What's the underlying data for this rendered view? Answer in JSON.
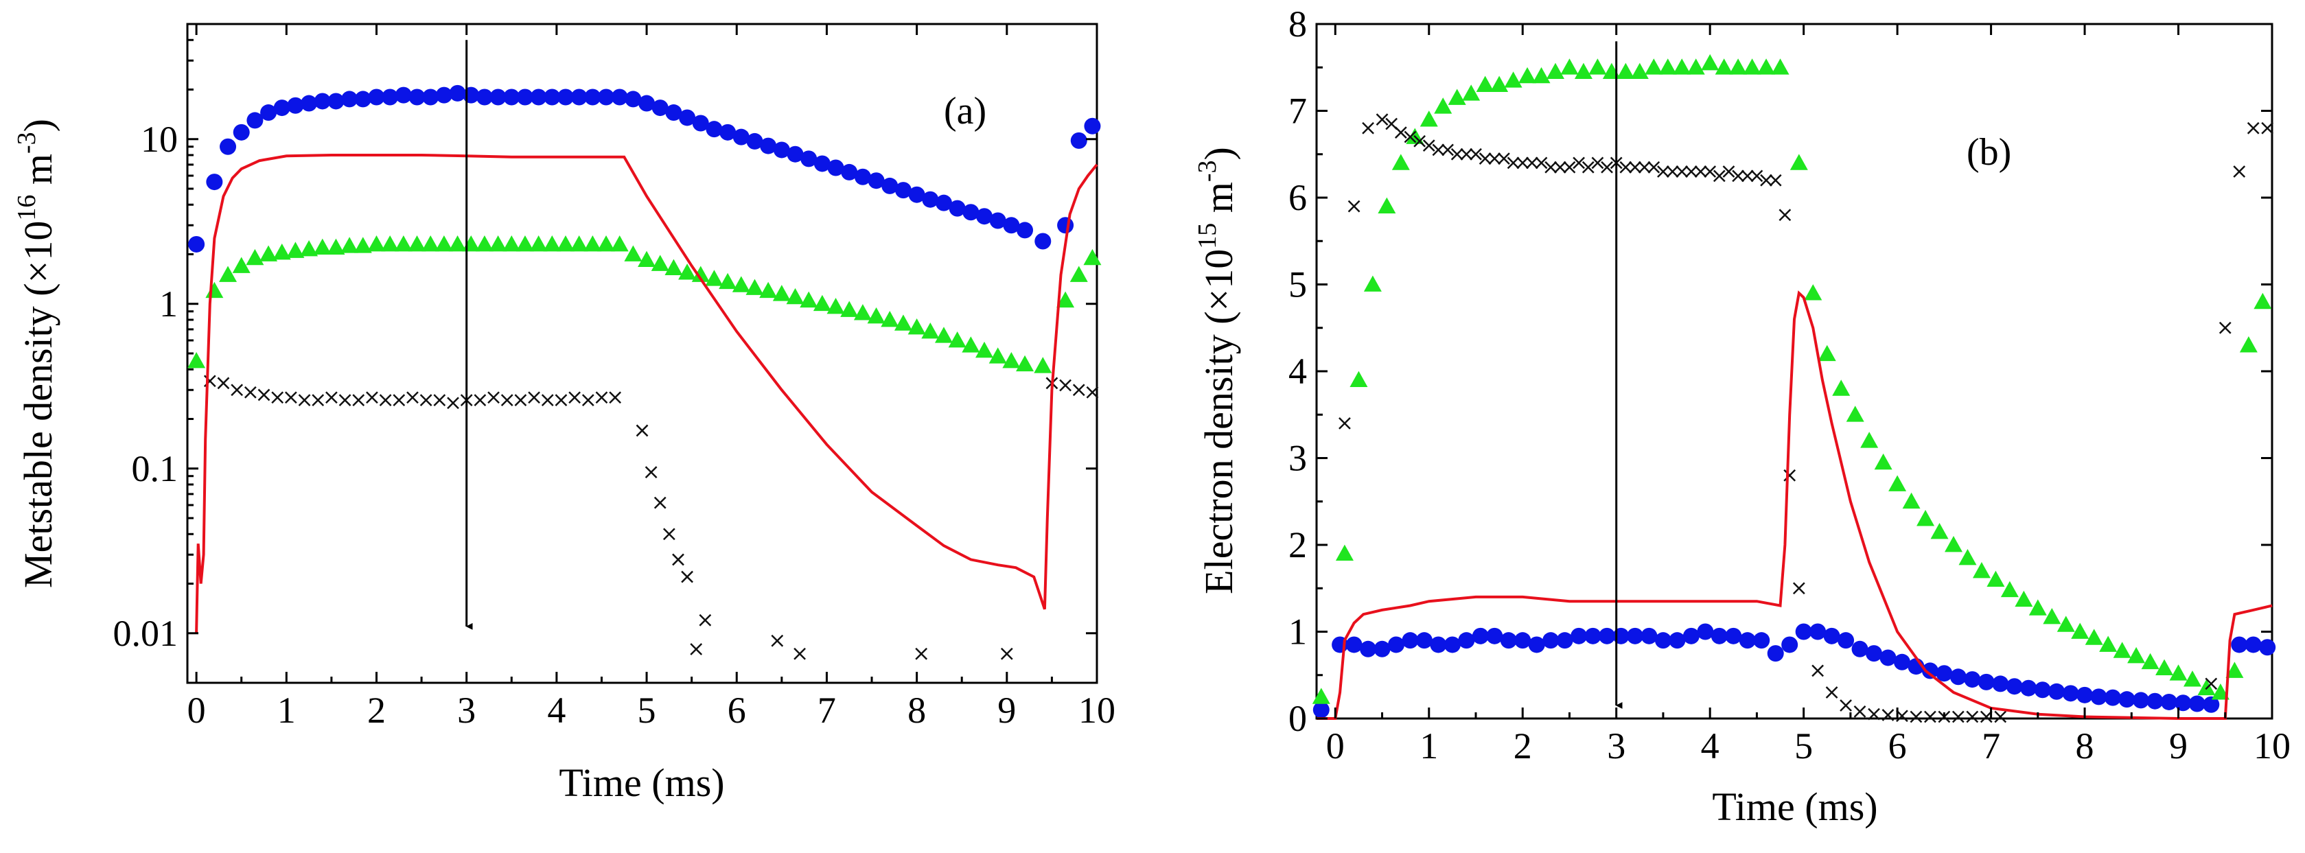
{
  "chart_data": [
    {
      "type": "scatter",
      "panel_label": "(a)",
      "title": "",
      "xlabel": "Time (ms)",
      "ylabel": "Metstable density (×10",
      "ylabel_exp": "16",
      "ylabel_unit": " m",
      "ylabel_unit_exp": "-3",
      "ylabel_close": ")",
      "yscale": "log",
      "xlim": [
        -0.1,
        10
      ],
      "ylim": [
        0.005,
        50
      ],
      "xticks": [
        0,
        1,
        2,
        3,
        4,
        5,
        6,
        7,
        8,
        9,
        10
      ],
      "xtick_labels": [
        "0",
        "1",
        "2",
        "3",
        "4",
        "5",
        "6",
        "7",
        "8",
        "9",
        "10"
      ],
      "yticks": [
        0.01,
        0.1,
        1,
        10
      ],
      "ytick_labels": [
        "0.01",
        "0.1",
        "1",
        "10"
      ],
      "arrow": {
        "x": 3,
        "y_from": 40,
        "y_to": 0.011
      },
      "series": [
        {
          "name": "blue-circles",
          "marker": "circle",
          "color": "#0a14e6",
          "x": [
            0.0,
            0.2,
            0.35,
            0.5,
            0.65,
            0.8,
            0.95,
            1.1,
            1.25,
            1.4,
            1.55,
            1.7,
            1.85,
            2.0,
            2.15,
            2.3,
            2.45,
            2.6,
            2.75,
            2.9,
            3.05,
            3.2,
            3.35,
            3.5,
            3.65,
            3.8,
            3.95,
            4.1,
            4.25,
            4.4,
            4.55,
            4.7,
            4.85,
            5.0,
            5.15,
            5.3,
            5.45,
            5.6,
            5.75,
            5.9,
            6.05,
            6.2,
            6.35,
            6.5,
            6.65,
            6.8,
            6.95,
            7.1,
            7.25,
            7.4,
            7.55,
            7.7,
            7.85,
            8.0,
            8.15,
            8.3,
            8.45,
            8.6,
            8.75,
            8.9,
            9.05,
            9.2,
            9.4,
            9.65,
            9.8,
            9.95
          ],
          "y": [
            2.3,
            5.5,
            9.0,
            11.0,
            13.0,
            14.5,
            15.5,
            16.0,
            16.5,
            17.0,
            17.0,
            17.5,
            17.5,
            18.0,
            18.0,
            18.5,
            18.0,
            18.0,
            18.5,
            19.0,
            18.5,
            18.0,
            18.0,
            18.0,
            18.0,
            18.0,
            18.0,
            18.0,
            18.0,
            18.0,
            18.0,
            18.0,
            17.5,
            16.5,
            15.5,
            14.5,
            13.5,
            12.5,
            11.5,
            11.0,
            10.3,
            9.7,
            9.1,
            8.6,
            8.1,
            7.6,
            7.1,
            6.7,
            6.3,
            5.9,
            5.6,
            5.2,
            4.9,
            4.6,
            4.3,
            4.1,
            3.8,
            3.6,
            3.4,
            3.2,
            3.0,
            2.8,
            2.4,
            3.0,
            9.8,
            12.0
          ]
        },
        {
          "name": "green-triangles",
          "marker": "triangle",
          "color": "#1fe51f",
          "x": [
            0.0,
            0.2,
            0.35,
            0.5,
            0.65,
            0.8,
            0.95,
            1.1,
            1.25,
            1.4,
            1.55,
            1.7,
            1.85,
            2.0,
            2.15,
            2.3,
            2.45,
            2.6,
            2.75,
            2.9,
            3.05,
            3.2,
            3.35,
            3.5,
            3.65,
            3.8,
            3.95,
            4.1,
            4.25,
            4.4,
            4.55,
            4.7,
            4.85,
            5.0,
            5.15,
            5.3,
            5.45,
            5.6,
            5.75,
            5.9,
            6.05,
            6.2,
            6.35,
            6.5,
            6.65,
            6.8,
            6.95,
            7.1,
            7.25,
            7.4,
            7.55,
            7.7,
            7.85,
            8.0,
            8.15,
            8.3,
            8.45,
            8.6,
            8.75,
            8.9,
            9.05,
            9.2,
            9.4,
            9.65,
            9.8,
            9.95
          ],
          "y": [
            0.45,
            1.2,
            1.5,
            1.7,
            1.9,
            2.0,
            2.05,
            2.1,
            2.15,
            2.2,
            2.2,
            2.25,
            2.25,
            2.3,
            2.3,
            2.3,
            2.3,
            2.3,
            2.3,
            2.3,
            2.3,
            2.3,
            2.3,
            2.3,
            2.3,
            2.3,
            2.3,
            2.3,
            2.3,
            2.3,
            2.3,
            2.3,
            2.0,
            1.85,
            1.75,
            1.65,
            1.55,
            1.5,
            1.42,
            1.36,
            1.3,
            1.25,
            1.2,
            1.15,
            1.1,
            1.05,
            1.0,
            0.96,
            0.92,
            0.88,
            0.84,
            0.8,
            0.76,
            0.72,
            0.68,
            0.64,
            0.6,
            0.56,
            0.52,
            0.48,
            0.45,
            0.43,
            0.42,
            1.05,
            1.5,
            1.9
          ]
        },
        {
          "name": "black-crosses",
          "marker": "x",
          "color": "#111111",
          "x": [
            0.15,
            0.3,
            0.45,
            0.6,
            0.75,
            0.9,
            1.05,
            1.2,
            1.35,
            1.5,
            1.65,
            1.8,
            1.95,
            2.1,
            2.25,
            2.4,
            2.55,
            2.7,
            2.85,
            3.0,
            3.15,
            3.3,
            3.45,
            3.6,
            3.75,
            3.9,
            4.05,
            4.2,
            4.35,
            4.5,
            4.65,
            4.95,
            5.05,
            5.15,
            5.25,
            5.35,
            5.45,
            5.55,
            5.65,
            6.45,
            6.7,
            8.05,
            9.0,
            9.5,
            9.65,
            9.8,
            9.95
          ],
          "y": [
            0.34,
            0.33,
            0.3,
            0.29,
            0.28,
            0.27,
            0.27,
            0.26,
            0.26,
            0.27,
            0.26,
            0.26,
            0.27,
            0.26,
            0.26,
            0.27,
            0.26,
            0.26,
            0.25,
            0.26,
            0.26,
            0.27,
            0.26,
            0.26,
            0.27,
            0.26,
            0.26,
            0.27,
            0.26,
            0.27,
            0.27,
            0.17,
            0.095,
            0.062,
            0.04,
            0.028,
            0.022,
            0.008,
            0.012,
            0.009,
            0.0075,
            0.0075,
            0.0075,
            0.33,
            0.32,
            0.3,
            0.29
          ]
        },
        {
          "name": "red-line",
          "marker": "line",
          "color": "#e8101c",
          "x": [
            0.0,
            0.02,
            0.05,
            0.08,
            0.1,
            0.15,
            0.2,
            0.3,
            0.4,
            0.5,
            0.7,
            1.0,
            1.5,
            2.0,
            2.5,
            3.0,
            3.5,
            4.0,
            4.5,
            4.75,
            5.0,
            5.5,
            6.0,
            6.5,
            7.0,
            7.5,
            8.0,
            8.3,
            8.6,
            8.9,
            9.1,
            9.3,
            9.42,
            9.45,
            9.5,
            9.6,
            9.7,
            9.8,
            9.9,
            10.0
          ],
          "y": [
            0.01,
            0.035,
            0.02,
            0.03,
            0.15,
            1.0,
            2.5,
            4.5,
            5.8,
            6.6,
            7.4,
            7.9,
            8.0,
            8.0,
            8.0,
            7.9,
            7.8,
            7.8,
            7.8,
            7.8,
            4.5,
            1.7,
            0.68,
            0.3,
            0.14,
            0.072,
            0.045,
            0.034,
            0.028,
            0.026,
            0.025,
            0.022,
            0.014,
            0.05,
            0.3,
            1.5,
            3.5,
            5.0,
            6.0,
            7.0
          ]
        }
      ]
    },
    {
      "type": "scatter",
      "panel_label": "(b)",
      "title": "",
      "xlabel": "Time (ms)",
      "ylabel": "Electron density (×10",
      "ylabel_exp": "15",
      "ylabel_unit": " m",
      "ylabel_unit_exp": "-3",
      "ylabel_close": ")",
      "yscale": "linear",
      "xlim": [
        -0.2,
        10
      ],
      "ylim": [
        0,
        8
      ],
      "xticks": [
        0,
        1,
        2,
        3,
        4,
        5,
        6,
        7,
        8,
        9,
        10
      ],
      "xtick_labels": [
        "0",
        "1",
        "2",
        "3",
        "4",
        "5",
        "6",
        "7",
        "8",
        "9",
        "10"
      ],
      "yticks": [
        0,
        1,
        2,
        3,
        4,
        5,
        6,
        7,
        8
      ],
      "ytick_labels": [
        "0",
        "1",
        "2",
        "3",
        "4",
        "5",
        "6",
        "7",
        "8"
      ],
      "arrow": {
        "x": 3,
        "y_from": 7.8,
        "y_to": 0.15
      },
      "series": [
        {
          "name": "blue-circles",
          "marker": "circle",
          "color": "#0a14e6",
          "x": [
            -0.15,
            0.05,
            0.2,
            0.35,
            0.5,
            0.65,
            0.8,
            0.95,
            1.1,
            1.25,
            1.4,
            1.55,
            1.7,
            1.85,
            2.0,
            2.15,
            2.3,
            2.45,
            2.6,
            2.75,
            2.9,
            3.05,
            3.2,
            3.35,
            3.5,
            3.65,
            3.8,
            3.95,
            4.1,
            4.25,
            4.4,
            4.55,
            4.7,
            4.85,
            5.0,
            5.15,
            5.3,
            5.45,
            5.6,
            5.75,
            5.9,
            6.05,
            6.2,
            6.35,
            6.5,
            6.65,
            6.8,
            6.95,
            7.1,
            7.25,
            7.4,
            7.55,
            7.7,
            7.85,
            8.0,
            8.15,
            8.3,
            8.45,
            8.6,
            8.75,
            8.9,
            9.05,
            9.2,
            9.35,
            9.65,
            9.8,
            9.95
          ],
          "y": [
            0.1,
            0.85,
            0.85,
            0.8,
            0.8,
            0.85,
            0.9,
            0.9,
            0.85,
            0.85,
            0.9,
            0.95,
            0.95,
            0.9,
            0.9,
            0.85,
            0.9,
            0.9,
            0.95,
            0.95,
            0.95,
            0.95,
            0.95,
            0.95,
            0.9,
            0.9,
            0.95,
            1.0,
            0.95,
            0.95,
            0.9,
            0.9,
            0.75,
            0.85,
            1.0,
            1.0,
            0.95,
            0.9,
            0.8,
            0.75,
            0.7,
            0.65,
            0.6,
            0.55,
            0.52,
            0.48,
            0.45,
            0.42,
            0.4,
            0.37,
            0.35,
            0.33,
            0.31,
            0.29,
            0.27,
            0.25,
            0.24,
            0.22,
            0.21,
            0.2,
            0.19,
            0.18,
            0.17,
            0.16,
            0.85,
            0.85,
            0.82
          ]
        },
        {
          "name": "green-triangles",
          "marker": "triangle",
          "color": "#1fe51f",
          "x": [
            -0.15,
            0.1,
            0.25,
            0.4,
            0.55,
            0.7,
            0.85,
            1.0,
            1.15,
            1.3,
            1.45,
            1.6,
            1.75,
            1.9,
            2.05,
            2.2,
            2.35,
            2.5,
            2.65,
            2.8,
            2.95,
            3.1,
            3.25,
            3.4,
            3.55,
            3.7,
            3.85,
            4.0,
            4.15,
            4.3,
            4.45,
            4.6,
            4.75,
            4.95,
            5.1,
            5.25,
            5.4,
            5.55,
            5.7,
            5.85,
            6.0,
            6.15,
            6.3,
            6.45,
            6.6,
            6.75,
            6.9,
            7.05,
            7.2,
            7.35,
            7.5,
            7.65,
            7.8,
            7.95,
            8.1,
            8.25,
            8.4,
            8.55,
            8.7,
            8.85,
            9.0,
            9.15,
            9.3,
            9.45,
            9.6,
            9.75,
            9.9
          ],
          "y": [
            0.25,
            1.9,
            3.9,
            5.0,
            5.9,
            6.4,
            6.7,
            6.9,
            7.05,
            7.15,
            7.2,
            7.3,
            7.3,
            7.35,
            7.4,
            7.4,
            7.45,
            7.5,
            7.45,
            7.5,
            7.45,
            7.45,
            7.45,
            7.5,
            7.5,
            7.5,
            7.5,
            7.55,
            7.5,
            7.5,
            7.5,
            7.5,
            7.5,
            6.4,
            4.9,
            4.2,
            3.8,
            3.5,
            3.2,
            2.95,
            2.7,
            2.5,
            2.3,
            2.15,
            2.0,
            1.85,
            1.7,
            1.6,
            1.48,
            1.37,
            1.27,
            1.17,
            1.08,
            1.0,
            0.93,
            0.85,
            0.78,
            0.72,
            0.65,
            0.58,
            0.52,
            0.45,
            0.35,
            0.3,
            0.55,
            4.3,
            4.8
          ]
        },
        {
          "name": "black-crosses",
          "marker": "x",
          "color": "#111111",
          "x": [
            0.1,
            0.2,
            0.35,
            0.5,
            0.6,
            0.7,
            0.8,
            0.9,
            1.0,
            1.1,
            1.2,
            1.3,
            1.4,
            1.5,
            1.6,
            1.7,
            1.8,
            1.9,
            2.0,
            2.1,
            2.2,
            2.3,
            2.4,
            2.5,
            2.6,
            2.7,
            2.8,
            2.9,
            3.0,
            3.1,
            3.2,
            3.3,
            3.4,
            3.5,
            3.6,
            3.7,
            3.8,
            3.9,
            4.0,
            4.1,
            4.2,
            4.3,
            4.4,
            4.5,
            4.6,
            4.7,
            4.8,
            4.85,
            4.95,
            5.15,
            5.3,
            5.45,
            5.6,
            5.75,
            5.9,
            6.05,
            6.2,
            6.35,
            6.5,
            6.65,
            6.8,
            6.95,
            7.1,
            9.35,
            9.5,
            9.65,
            9.8,
            9.95
          ],
          "y": [
            3.4,
            5.9,
            6.8,
            6.9,
            6.85,
            6.75,
            6.7,
            6.65,
            6.6,
            6.55,
            6.55,
            6.5,
            6.5,
            6.5,
            6.45,
            6.45,
            6.45,
            6.4,
            6.4,
            6.4,
            6.4,
            6.35,
            6.35,
            6.35,
            6.4,
            6.35,
            6.4,
            6.35,
            6.4,
            6.35,
            6.35,
            6.35,
            6.35,
            6.3,
            6.3,
            6.3,
            6.3,
            6.3,
            6.3,
            6.25,
            6.3,
            6.25,
            6.25,
            6.25,
            6.2,
            6.2,
            5.8,
            2.8,
            1.5,
            0.55,
            0.3,
            0.15,
            0.08,
            0.05,
            0.04,
            0.03,
            0.02,
            0.02,
            0.02,
            0.02,
            0.02,
            0.02,
            0.02,
            0.4,
            4.5,
            6.3,
            6.8,
            6.8
          ]
        },
        {
          "name": "red-line",
          "marker": "line",
          "color": "#e8101c",
          "x": [
            -0.2,
            0.0,
            0.05,
            0.1,
            0.2,
            0.3,
            0.5,
            0.8,
            1.0,
            1.5,
            2.0,
            2.5,
            3.0,
            3.5,
            4.0,
            4.5,
            4.75,
            4.8,
            4.85,
            4.9,
            4.95,
            5.0,
            5.1,
            5.2,
            5.3,
            5.5,
            5.7,
            6.0,
            6.3,
            6.6,
            7.0,
            7.5,
            8.0,
            8.5,
            9.0,
            9.5,
            9.55,
            9.6,
            9.8,
            10.0
          ],
          "y": [
            0.0,
            0.0,
            0.3,
            0.9,
            1.1,
            1.2,
            1.25,
            1.3,
            1.35,
            1.4,
            1.4,
            1.35,
            1.35,
            1.35,
            1.35,
            1.35,
            1.3,
            2.0,
            3.5,
            4.6,
            4.9,
            4.85,
            4.5,
            3.9,
            3.4,
            2.5,
            1.8,
            1.0,
            0.55,
            0.3,
            0.12,
            0.05,
            0.02,
            0.01,
            0.0,
            0.0,
            0.9,
            1.2,
            1.25,
            1.3
          ]
        }
      ]
    }
  ]
}
